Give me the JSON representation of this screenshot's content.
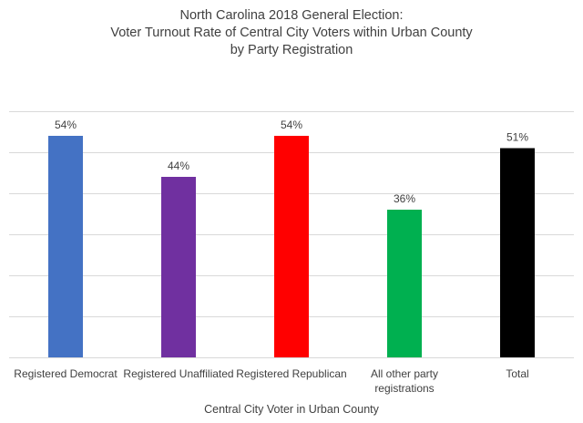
{
  "chart_data": {
    "type": "bar",
    "title_lines": [
      "North Carolina 2018 General Election:",
      "Voter Turnout Rate of Central City Voters within Urban County",
      "by Party Registration"
    ],
    "xlabel": "Central City Voter in Urban County",
    "ylabel": "",
    "categories": [
      [
        "Registered Democrat"
      ],
      [
        "Registered Unaffiliated"
      ],
      [
        "Registered Republican"
      ],
      [
        "All other party",
        "registrations"
      ],
      [
        "Total"
      ]
    ],
    "values": [
      0.54,
      0.44,
      0.54,
      0.36,
      0.51
    ],
    "data_labels": [
      "54%",
      "44%",
      "54%",
      "36%",
      "51%"
    ],
    "colors": [
      "#4472C4",
      "#7030A0",
      "#FF0000",
      "#00B050",
      "#000000"
    ],
    "ylim": [
      0,
      0.6
    ],
    "y_gridlines": [
      0,
      0.1,
      0.2,
      0.3,
      0.4,
      0.5,
      0.6
    ],
    "grid": true,
    "y_tick_labels_visible": false,
    "legend": "none"
  }
}
